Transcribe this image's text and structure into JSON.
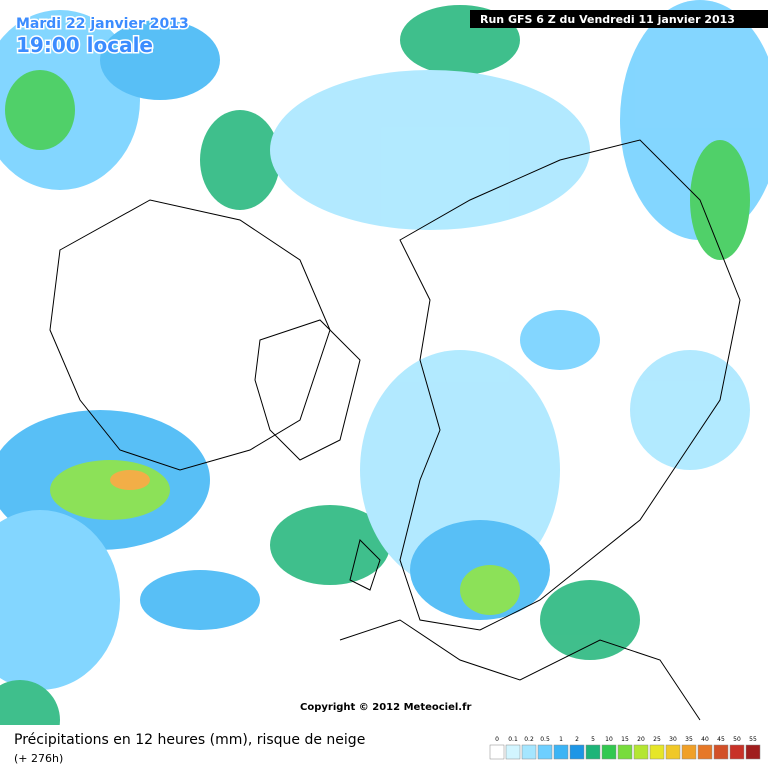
{
  "header": {
    "date": "Mardi 22 janvier 2013",
    "time": "19:00 locale",
    "run": "Run GFS 6 Z du Vendredi 11 janvier 2013"
  },
  "copyright": "Copyright © 2012 Meteociel.fr",
  "footer": {
    "title": "Précipitations en 12 heures (mm), risque de neige",
    "lead": "(+ 276h)"
  },
  "legend": {
    "items": [
      {
        "label": 0,
        "color": "#ffffff"
      },
      {
        "label": 0.1,
        "color": "#d2f5ff"
      },
      {
        "label": 0.2,
        "color": "#a5e6ff"
      },
      {
        "label": 0.5,
        "color": "#6ecfff"
      },
      {
        "label": 1,
        "color": "#3cb4f5"
      },
      {
        "label": 2,
        "color": "#1e96e6"
      },
      {
        "label": 5,
        "color": "#1eb478"
      },
      {
        "label": 10,
        "color": "#32c850"
      },
      {
        "label": 15,
        "color": "#78dc3c"
      },
      {
        "label": 20,
        "color": "#b4e632"
      },
      {
        "label": 25,
        "color": "#e6e628"
      },
      {
        "label": 30,
        "color": "#f0c828"
      },
      {
        "label": 35,
        "color": "#f0a028"
      },
      {
        "label": 40,
        "color": "#e67828"
      },
      {
        "label": 45,
        "color": "#d25028"
      },
      {
        "label": 50,
        "color": "#c83228"
      },
      {
        "label": 55,
        "color": "#a01e1e"
      }
    ]
  }
}
